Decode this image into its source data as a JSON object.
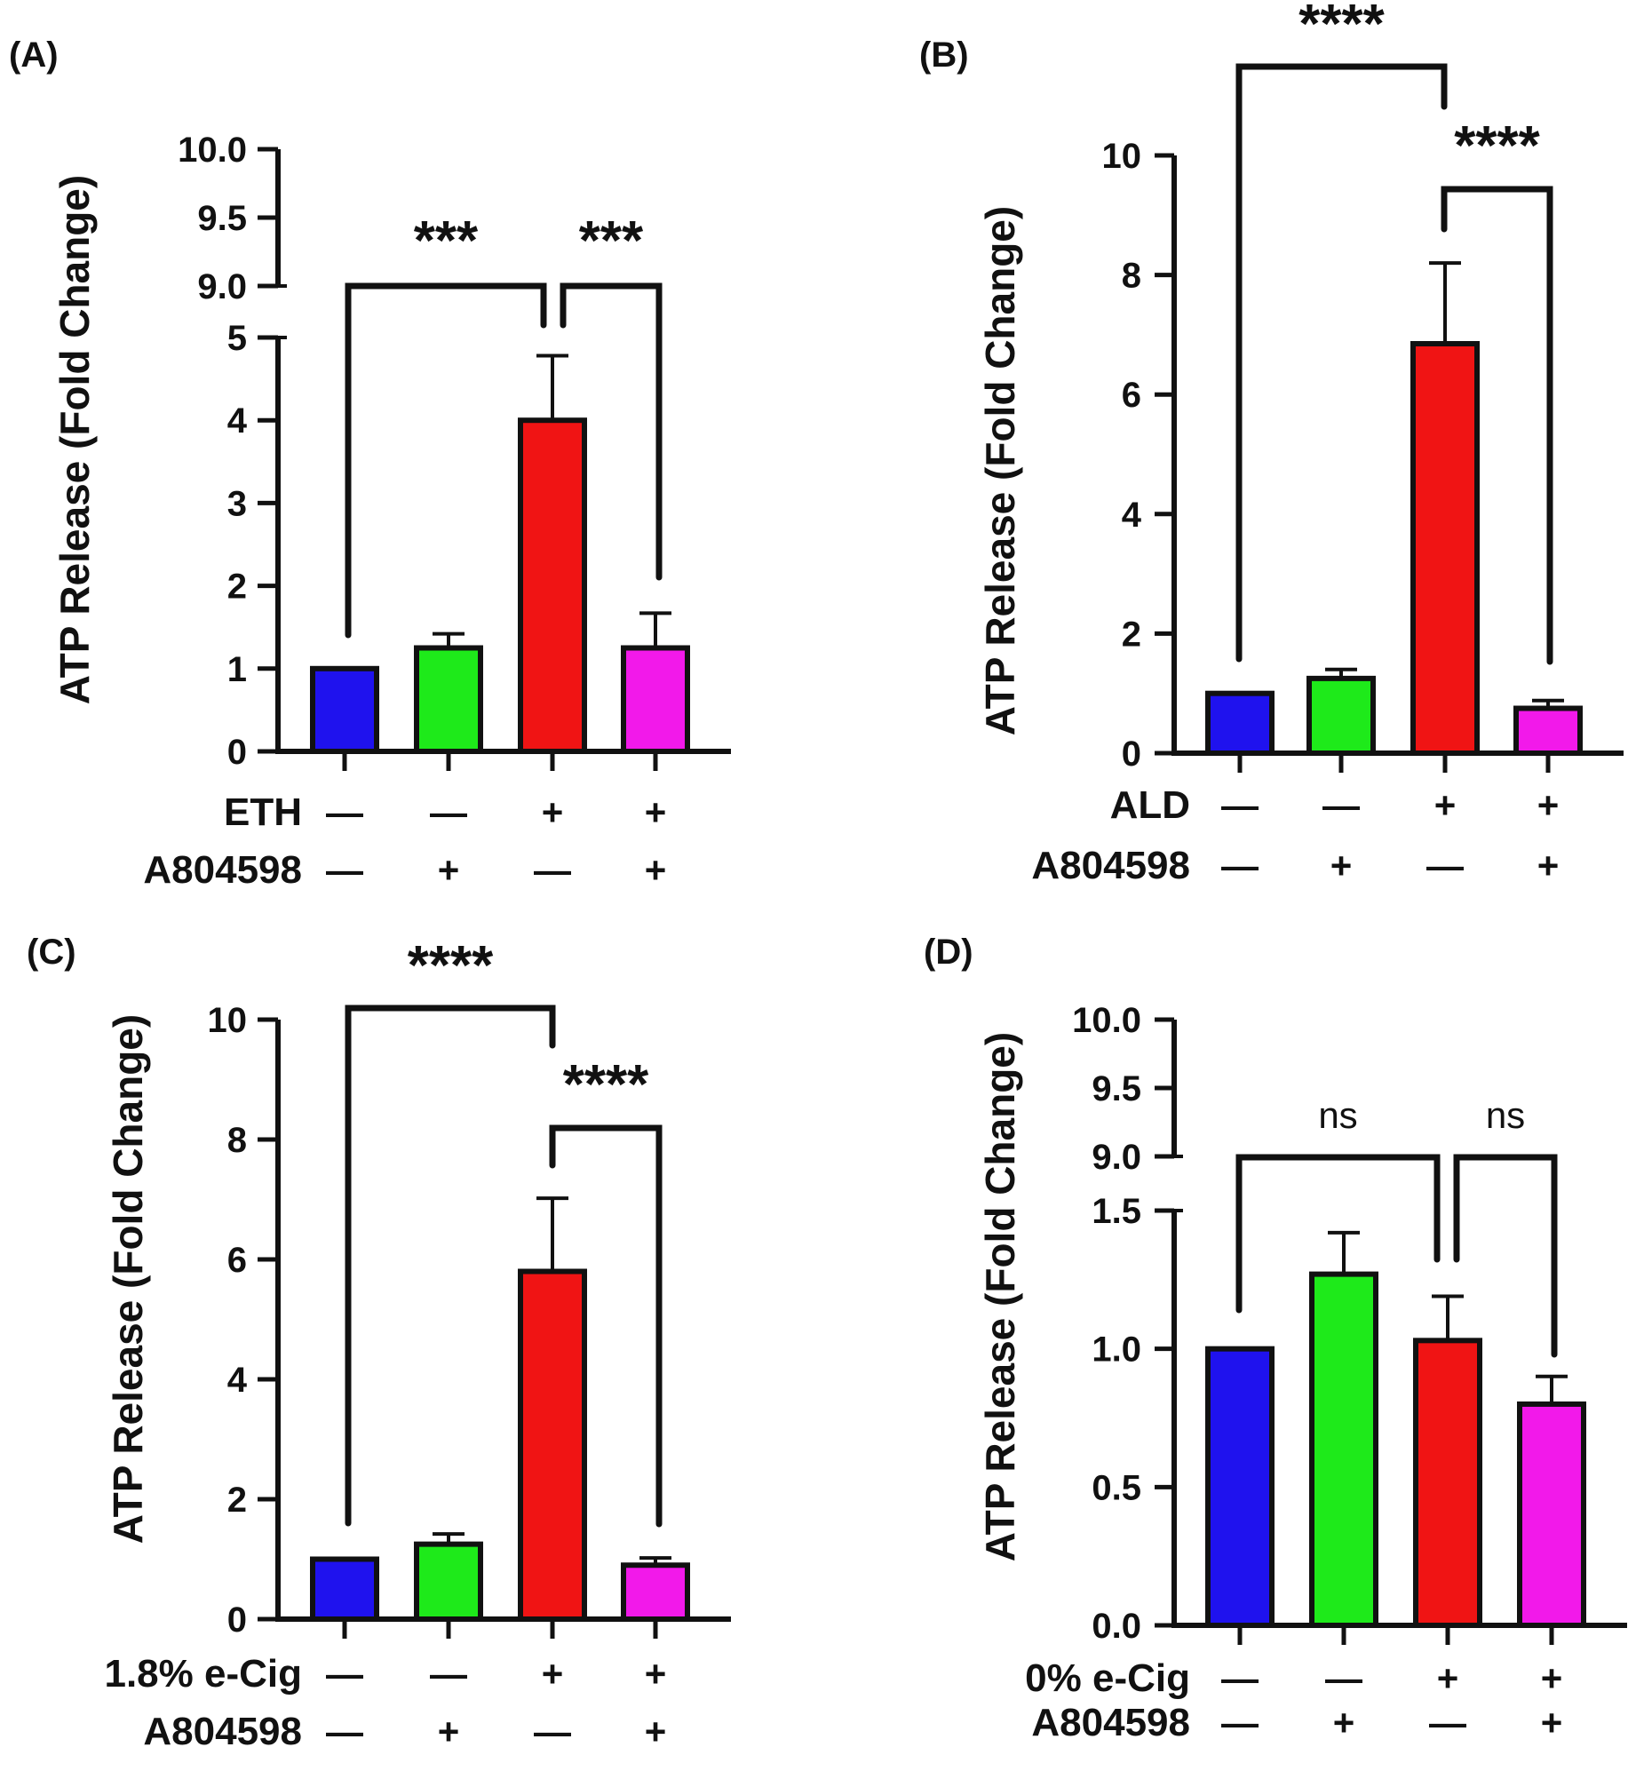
{
  "figure": {
    "colors": {
      "axis": "#111111",
      "control": "#1f12ee",
      "a804598": "#1eea1a",
      "treatment": "#f01414",
      "combo": "#f219ea"
    }
  },
  "chart_data": [
    {
      "panel_label": "(A)",
      "type": "bar",
      "ylabel": "ATP Release (Fold Change)",
      "broken_axis": true,
      "lower_ylim": [
        0,
        5
      ],
      "lower_ticks": [
        "0",
        "1",
        "2",
        "3",
        "4",
        "5"
      ],
      "upper_ylim": [
        9,
        10
      ],
      "upper_ticks": [
        "9.0",
        "9.5",
        "10.0"
      ],
      "values": [
        1.0,
        1.25,
        4.0,
        1.25
      ],
      "errors": [
        0,
        0.17,
        0.78,
        0.42
      ],
      "colors": [
        "#1f12ee",
        "#1eea1a",
        "#f01414",
        "#f219ea"
      ],
      "treatment_rows": [
        {
          "label": "ETH",
          "signs": [
            "—",
            "—",
            "+",
            "+"
          ]
        },
        {
          "label": "A804598",
          "signs": [
            "—",
            "+",
            "—",
            "+"
          ]
        }
      ],
      "significance": [
        {
          "from": 0,
          "to": 2,
          "label": "***"
        },
        {
          "from": 2,
          "to": 3,
          "label": "***"
        }
      ]
    },
    {
      "panel_label": "(B)",
      "type": "bar",
      "ylabel": "ATP Release (Fold Change)",
      "broken_axis": false,
      "ylim": [
        0,
        10
      ],
      "ticks": [
        "0",
        "2",
        "4",
        "6",
        "8",
        "10"
      ],
      "values": [
        1.0,
        1.25,
        6.85,
        0.75
      ],
      "errors": [
        0,
        0.15,
        1.35,
        0.13
      ],
      "colors": [
        "#1f12ee",
        "#1eea1a",
        "#f01414",
        "#f219ea"
      ],
      "treatment_rows": [
        {
          "label": "ALD",
          "signs": [
            "—",
            "—",
            "+",
            "+"
          ]
        },
        {
          "label": "A804598",
          "signs": [
            "—",
            "+",
            "—",
            "+"
          ]
        }
      ],
      "significance": [
        {
          "from": 0,
          "to": 2,
          "label": "****"
        },
        {
          "from": 2,
          "to": 3,
          "label": "****"
        }
      ]
    },
    {
      "panel_label": "(C)",
      "type": "bar",
      "ylabel": "ATP Release (Fold Change)",
      "broken_axis": false,
      "ylim": [
        0,
        10
      ],
      "ticks": [
        "0",
        "2",
        "4",
        "6",
        "8",
        "10"
      ],
      "values": [
        1.0,
        1.25,
        5.8,
        0.9
      ],
      "errors": [
        0,
        0.17,
        1.22,
        0.12
      ],
      "colors": [
        "#1f12ee",
        "#1eea1a",
        "#f01414",
        "#f219ea"
      ],
      "treatment_rows": [
        {
          "label": "1.8% e-Cig",
          "signs": [
            "—",
            "—",
            "+",
            "+"
          ]
        },
        {
          "label": "A804598",
          "signs": [
            "—",
            "+",
            "—",
            "+"
          ]
        }
      ],
      "significance": [
        {
          "from": 0,
          "to": 2,
          "label": "****"
        },
        {
          "from": 2,
          "to": 3,
          "label": "****"
        }
      ]
    },
    {
      "panel_label": "(D)",
      "type": "bar",
      "ylabel": "ATP Release (Fold Change)",
      "broken_axis": true,
      "lower_ylim": [
        0,
        1.5
      ],
      "lower_ticks": [
        "0.0",
        "0.5",
        "1.0",
        "1.5"
      ],
      "upper_ylim": [
        9,
        10
      ],
      "upper_ticks": [
        "9.0",
        "9.5",
        "10.0"
      ],
      "values": [
        1.0,
        1.27,
        1.03,
        0.8
      ],
      "errors": [
        0,
        0.15,
        0.16,
        0.1
      ],
      "colors": [
        "#1f12ee",
        "#1eea1a",
        "#f01414",
        "#f219ea"
      ],
      "treatment_rows": [
        {
          "label": "0% e-Cig",
          "signs": [
            "—",
            "—",
            "+",
            "+"
          ]
        },
        {
          "label": "A804598",
          "signs": [
            "—",
            "+",
            "—",
            "+"
          ]
        }
      ],
      "significance": [
        {
          "from": 0,
          "to": 2,
          "label": "ns"
        },
        {
          "from": 2,
          "to": 3,
          "label": "ns"
        }
      ]
    }
  ]
}
